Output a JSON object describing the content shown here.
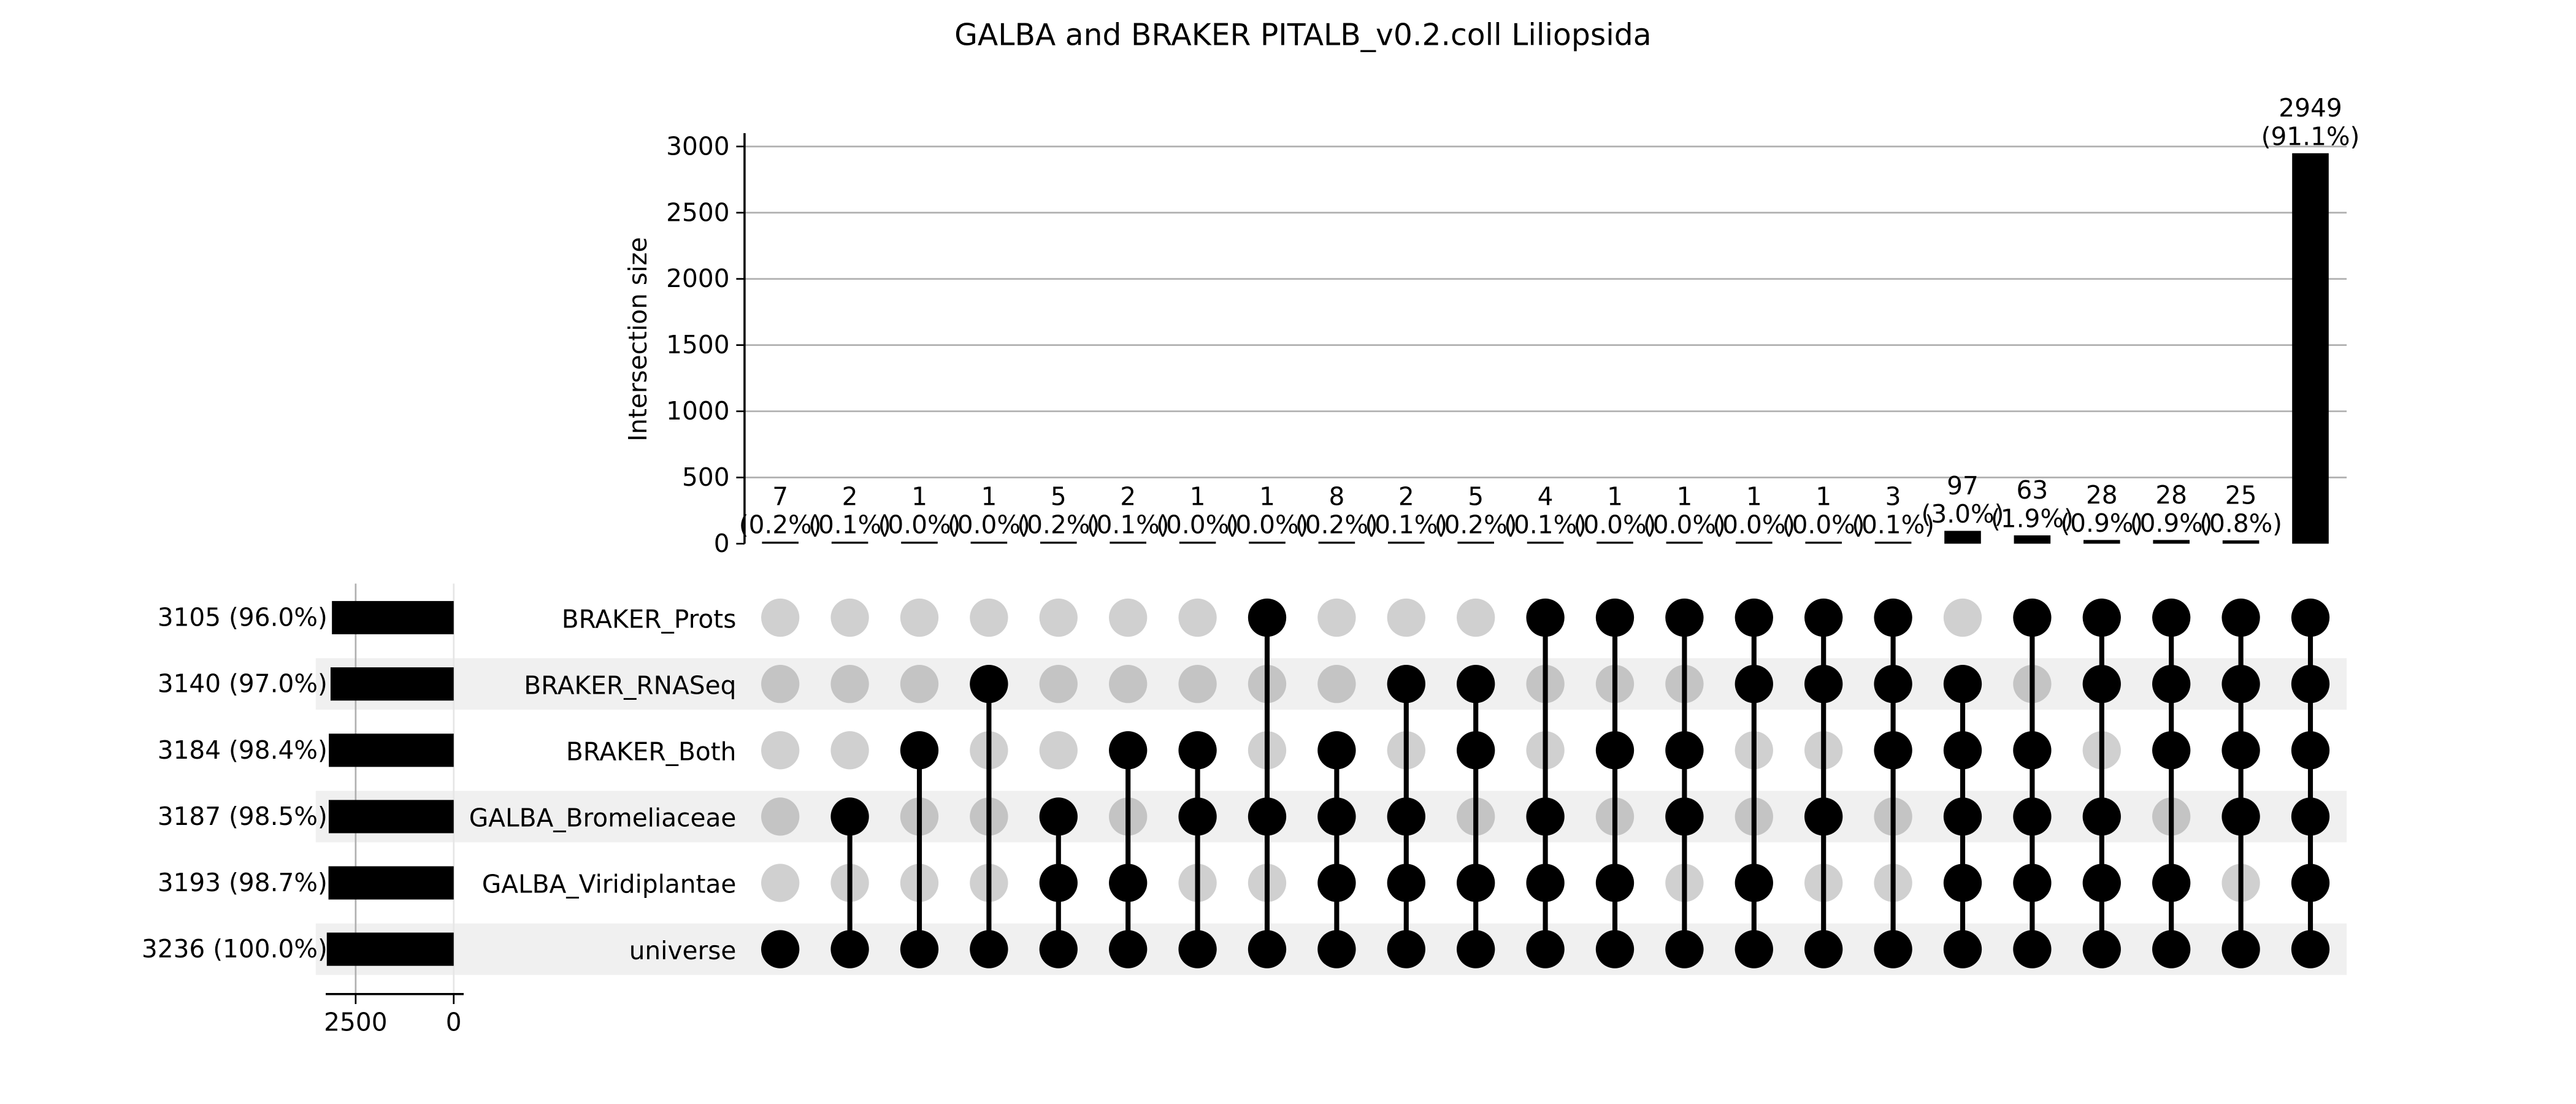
{
  "chart_data": {
    "type": "upset",
    "title": "GALBA and BRAKER PITALB_v0.2.coll Liliopsida",
    "ylabel": "Intersection size",
    "ylim": [
      0,
      3000
    ],
    "yticks": [
      "0",
      "500",
      "1000",
      "1500",
      "2000",
      "2500",
      "3000"
    ],
    "set_size_ticks": [
      "2500",
      "0"
    ],
    "sets": [
      {
        "name": "BRAKER_Prots",
        "size": 3105,
        "label": "3105 (96.0%)"
      },
      {
        "name": "BRAKER_RNASeq",
        "size": 3140,
        "label": "3140 (97.0%)"
      },
      {
        "name": "BRAKER_Both",
        "size": 3184,
        "label": "3184 (98.4%)"
      },
      {
        "name": "GALBA_Bromeliaceae",
        "size": 3187,
        "label": "3187 (98.5%)"
      },
      {
        "name": "GALBA_Viridiplantae",
        "size": 3193,
        "label": "3193 (98.7%)"
      },
      {
        "name": "universe",
        "size": 3236,
        "label": "3236 (100.0%)"
      }
    ],
    "intersections": [
      {
        "count": 7,
        "count_label": "7",
        "pct_label": "(0.2%)",
        "members": [
          5
        ]
      },
      {
        "count": 2,
        "count_label": "2",
        "pct_label": "(0.1%)",
        "members": [
          3,
          5
        ]
      },
      {
        "count": 1,
        "count_label": "1",
        "pct_label": "(0.0%)",
        "members": [
          2,
          5
        ]
      },
      {
        "count": 1,
        "count_label": "1",
        "pct_label": "(0.0%)",
        "members": [
          1,
          5
        ]
      },
      {
        "count": 5,
        "count_label": "5",
        "pct_label": "(0.2%)",
        "members": [
          3,
          4,
          5
        ]
      },
      {
        "count": 2,
        "count_label": "2",
        "pct_label": "(0.1%)",
        "members": [
          2,
          4,
          5
        ]
      },
      {
        "count": 1,
        "count_label": "1",
        "pct_label": "(0.0%)",
        "members": [
          2,
          3,
          5
        ]
      },
      {
        "count": 1,
        "count_label": "1",
        "pct_label": "(0.0%)",
        "members": [
          0,
          3,
          5
        ]
      },
      {
        "count": 8,
        "count_label": "8",
        "pct_label": "(0.2%)",
        "members": [
          2,
          3,
          4,
          5
        ]
      },
      {
        "count": 2,
        "count_label": "2",
        "pct_label": "(0.1%)",
        "members": [
          1,
          3,
          4,
          5
        ]
      },
      {
        "count": 5,
        "count_label": "5",
        "pct_label": "(0.2%)",
        "members": [
          1,
          2,
          4,
          5
        ]
      },
      {
        "count": 4,
        "count_label": "4",
        "pct_label": "(0.1%)",
        "members": [
          0,
          3,
          4,
          5
        ]
      },
      {
        "count": 1,
        "count_label": "1",
        "pct_label": "(0.0%)",
        "members": [
          0,
          2,
          4,
          5
        ]
      },
      {
        "count": 1,
        "count_label": "1",
        "pct_label": "(0.0%)",
        "members": [
          0,
          2,
          3,
          5
        ]
      },
      {
        "count": 1,
        "count_label": "1",
        "pct_label": "(0.0%)",
        "members": [
          0,
          1,
          4,
          5
        ]
      },
      {
        "count": 1,
        "count_label": "1",
        "pct_label": "(0.0%)",
        "members": [
          0,
          1,
          3,
          5
        ]
      },
      {
        "count": 3,
        "count_label": "3",
        "pct_label": "(0.1%)",
        "members": [
          0,
          1,
          2,
          5
        ]
      },
      {
        "count": 97,
        "count_label": "97",
        "pct_label": "(3.0%)",
        "members": [
          1,
          2,
          3,
          4,
          5
        ]
      },
      {
        "count": 63,
        "count_label": "63",
        "pct_label": "(1.9%)",
        "members": [
          0,
          2,
          3,
          4,
          5
        ]
      },
      {
        "count": 28,
        "count_label": "28",
        "pct_label": "(0.9%)",
        "members": [
          0,
          1,
          3,
          4,
          5
        ]
      },
      {
        "count": 28,
        "count_label": "28",
        "pct_label": "(0.9%)",
        "members": [
          0,
          1,
          2,
          4,
          5
        ]
      },
      {
        "count": 25,
        "count_label": "25",
        "pct_label": "(0.8%)",
        "members": [
          0,
          1,
          2,
          3,
          5
        ]
      },
      {
        "count": 2949,
        "count_label": "2949",
        "pct_label": "(91.1%)",
        "members": [
          0,
          1,
          2,
          3,
          4,
          5
        ]
      }
    ]
  }
}
